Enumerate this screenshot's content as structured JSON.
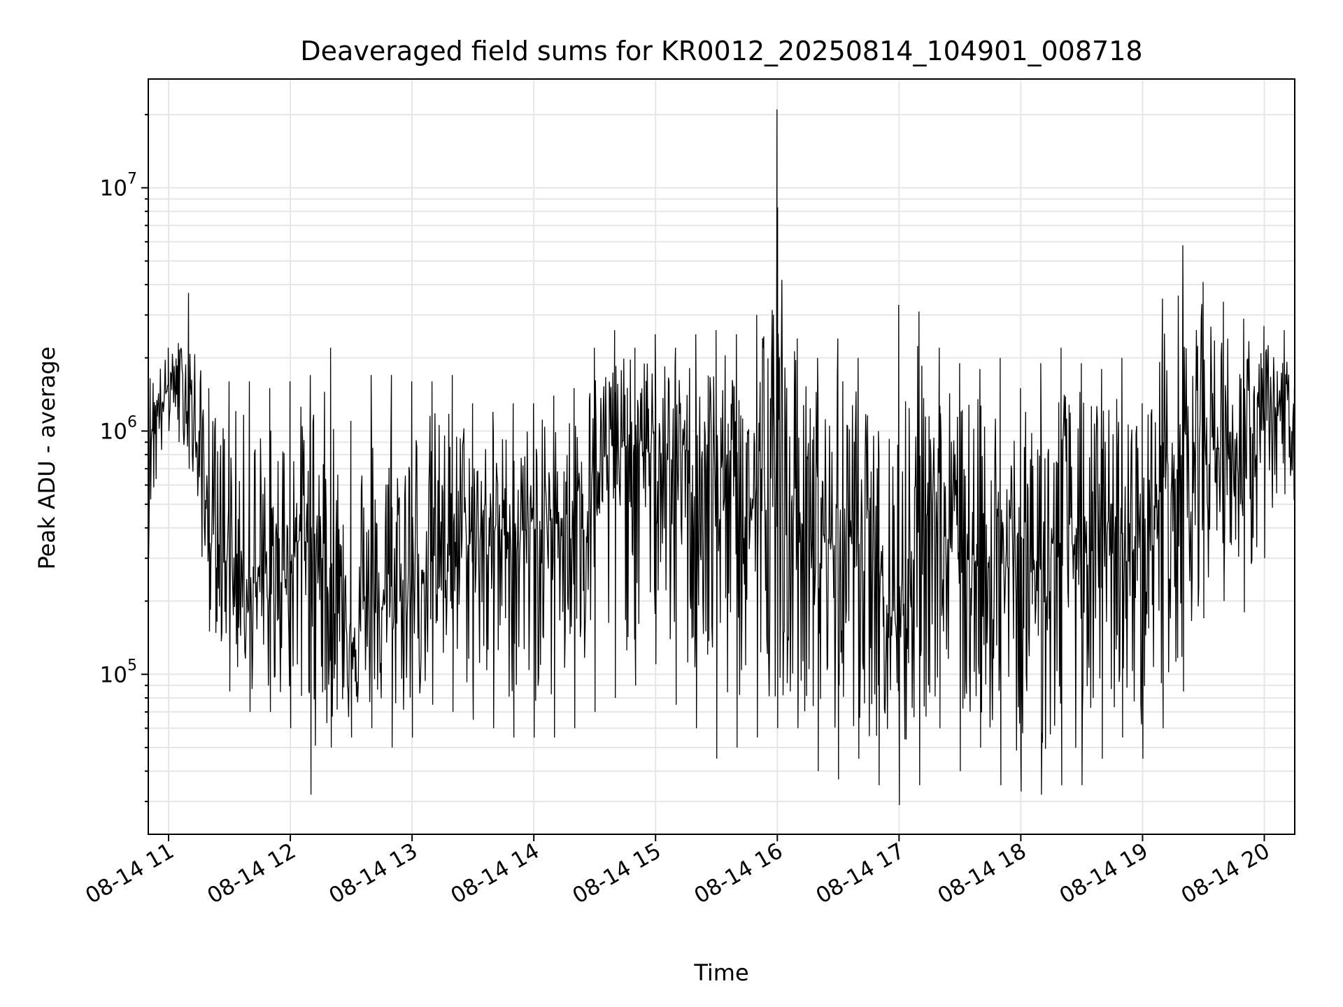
{
  "chart_data": {
    "type": "line",
    "title": "Deaveraged field sums for KR0012_20250814_104901_008718",
    "xlabel": "Time",
    "ylabel": "Peak ADU - average",
    "x_axis": "time",
    "y_scale": "log",
    "xlim": [
      "2025-08-14 10:50",
      "2025-08-14 20:15"
    ],
    "ylim": [
      22000,
      28000000
    ],
    "x_ticks": [
      {
        "value": "2025-08-14 11:00",
        "label": "08-14 11"
      },
      {
        "value": "2025-08-14 12:00",
        "label": "08-14 12"
      },
      {
        "value": "2025-08-14 13:00",
        "label": "08-14 13"
      },
      {
        "value": "2025-08-14 14:00",
        "label": "08-14 14"
      },
      {
        "value": "2025-08-14 15:00",
        "label": "08-14 15"
      },
      {
        "value": "2025-08-14 16:00",
        "label": "08-14 16"
      },
      {
        "value": "2025-08-14 17:00",
        "label": "08-14 17"
      },
      {
        "value": "2025-08-14 18:00",
        "label": "08-14 18"
      },
      {
        "value": "2025-08-14 19:00",
        "label": "08-14 19"
      },
      {
        "value": "2025-08-14 20:00",
        "label": "08-14 20"
      }
    ],
    "y_ticks": [
      {
        "value": 100000,
        "base": "10",
        "exp": "5"
      },
      {
        "value": 1000000,
        "base": "10",
        "exp": "6"
      },
      {
        "value": 10000000,
        "base": "10",
        "exp": "7"
      }
    ],
    "grid": true,
    "line_color": "#000000",
    "grid_color": "#e6e6e6",
    "series": [
      {
        "x": [
          "2025-08-14 10:50",
          "2025-08-14 11:00",
          "2025-08-14 11:05",
          "2025-08-14 11:10",
          "2025-08-14 11:20",
          "2025-08-14 11:30",
          "2025-08-14 11:40",
          "2025-08-14 11:50",
          "2025-08-14 12:00",
          "2025-08-14 12:10",
          "2025-08-14 12:20",
          "2025-08-14 12:30",
          "2025-08-14 12:40",
          "2025-08-14 12:50",
          "2025-08-14 13:00",
          "2025-08-14 13:10",
          "2025-08-14 13:20",
          "2025-08-14 13:30",
          "2025-08-14 13:40",
          "2025-08-14 13:50",
          "2025-08-14 14:00",
          "2025-08-14 14:10",
          "2025-08-14 14:20",
          "2025-08-14 14:30",
          "2025-08-14 14:40",
          "2025-08-14 14:50",
          "2025-08-14 15:00",
          "2025-08-14 15:10",
          "2025-08-14 15:20",
          "2025-08-14 15:30",
          "2025-08-14 15:40",
          "2025-08-14 15:50",
          "2025-08-14 16:00",
          "2025-08-14 16:10",
          "2025-08-14 16:20",
          "2025-08-14 16:30",
          "2025-08-14 16:40",
          "2025-08-14 16:50",
          "2025-08-14 17:00",
          "2025-08-14 17:10",
          "2025-08-14 17:20",
          "2025-08-14 17:30",
          "2025-08-14 17:40",
          "2025-08-14 17:50",
          "2025-08-14 18:00",
          "2025-08-14 18:10",
          "2025-08-14 18:20",
          "2025-08-14 18:30",
          "2025-08-14 18:40",
          "2025-08-14 18:50",
          "2025-08-14 19:00",
          "2025-08-14 19:10",
          "2025-08-14 19:20",
          "2025-08-14 19:30",
          "2025-08-14 19:40",
          "2025-08-14 19:50",
          "2025-08-14 20:00",
          "2025-08-14 20:10",
          "2025-08-14 20:15"
        ],
        "values": [
          1000000,
          1500000,
          1700000,
          1400000,
          400000,
          300000,
          250000,
          200000,
          300000,
          450000,
          200000,
          150000,
          180000,
          200000,
          250000,
          300000,
          350000,
          350000,
          400000,
          380000,
          400000,
          420000,
          480000,
          650000,
          900000,
          850000,
          800000,
          750000,
          700000,
          650000,
          550000,
          500000,
          450000,
          400000,
          380000,
          350000,
          380000,
          360000,
          150000,
          550000,
          400000,
          330000,
          300000,
          280000,
          260000,
          280000,
          330000,
          350000,
          300000,
          320000,
          330000,
          600000,
          800000,
          1000000,
          800000,
          900000,
          1000000,
          1400000,
          900000
        ],
        "high": [
          2000000,
          2200000,
          2300000,
          3700000,
          1500000,
          1600000,
          1600000,
          1500000,
          1600000,
          1700000,
          2200000,
          1100000,
          1700000,
          1700000,
          1600000,
          1600000,
          1700000,
          1300000,
          1200000,
          1300000,
          1300000,
          1400000,
          1500000,
          2200000,
          2600000,
          2200000,
          2500000,
          2200000,
          2500000,
          2600000,
          2500000,
          3000000,
          21000000,
          2400000,
          2000000,
          2400000,
          2000000,
          1000000,
          3300000,
          3100000,
          2200000,
          1900000,
          1800000,
          2000000,
          1500000,
          1900000,
          2200000,
          1900000,
          1800000,
          2000000,
          1300000,
          3500000,
          5800000,
          4100000,
          3400000,
          2900000,
          2700000,
          2600000,
          1500000
        ],
        "low": [
          300000,
          1000000,
          900000,
          700000,
          150000,
          85000,
          70000,
          70000,
          60000,
          32000,
          50000,
          55000,
          60000,
          50000,
          55000,
          75000,
          70000,
          65000,
          60000,
          55000,
          55000,
          55000,
          60000,
          70000,
          80000,
          90000,
          110000,
          75000,
          60000,
          45000,
          50000,
          55000,
          60000,
          60000,
          40000,
          37000,
          45000,
          35000,
          29000,
          35000,
          60000,
          40000,
          50000,
          35000,
          33000,
          32000,
          35000,
          35000,
          45000,
          55000,
          45000,
          60000,
          85000,
          170000,
          200000,
          180000,
          300000,
          550000,
          260000
        ]
      }
    ]
  }
}
